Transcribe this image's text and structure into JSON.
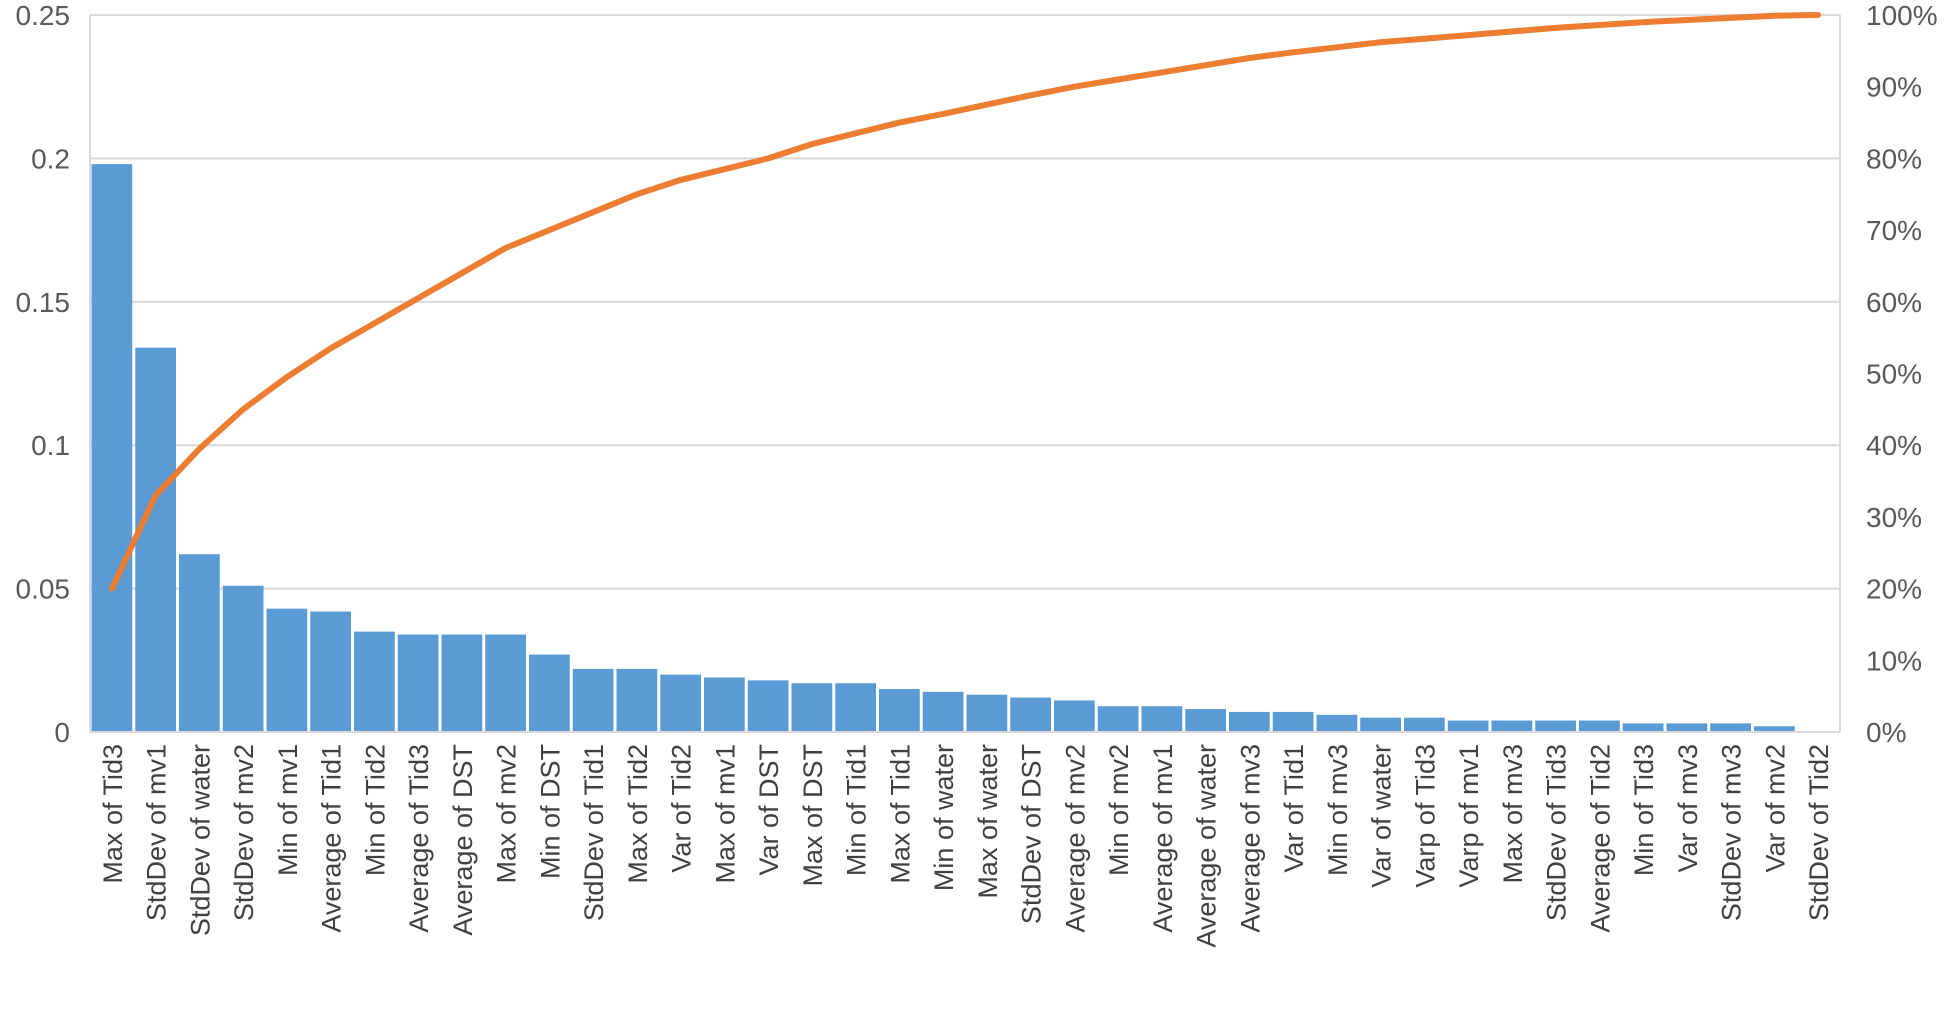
{
  "chart_data": {
    "type": "bar",
    "title": "",
    "xlabel": "",
    "ylabel": "",
    "y2label": "",
    "ylim": [
      0,
      0.25
    ],
    "y2lim": [
      0,
      1
    ],
    "grid": true,
    "legend": "none",
    "y_ticks": [
      "0",
      "0.05",
      "0.1",
      "0.15",
      "0.2",
      "0.25"
    ],
    "y2_ticks": [
      "0%",
      "10%",
      "20%",
      "30%",
      "40%",
      "50%",
      "60%",
      "70%",
      "80%",
      "90%",
      "100%"
    ],
    "categories": [
      "Max of Tid3",
      "StdDev of mv1",
      "StdDev of water",
      "StdDev of mv2",
      "Min of mv1",
      "Average of Tid1",
      "Min of Tid2",
      "Average of Tid3",
      "Average of DST",
      "Max of mv2",
      "Min of DST",
      "StdDev of Tid1",
      "Max of Tid2",
      "Var of Tid2",
      "Max of mv1",
      "Var of DST",
      "Max of DST",
      "Min of Tid1",
      "Max of Tid1",
      "Min of water",
      "Max of water",
      "StdDev of DST",
      "Average of mv2",
      "Min of mv2",
      "Average of mv1",
      "Average of water",
      "Average of mv3",
      "Var of Tid1",
      "Min of mv3",
      "Var of water",
      "Varp of Tid3",
      "Varp of mv1",
      "Max of mv3",
      "StdDev of Tid3",
      "Average of Tid2",
      "Min of Tid3",
      "Var of mv3",
      "StdDev of mv3",
      "Var of mv2",
      "StdDev of Tid2"
    ],
    "series": [
      {
        "type": "bar",
        "axis": "left",
        "values": [
          0.198,
          0.134,
          0.062,
          0.051,
          0.043,
          0.042,
          0.035,
          0.034,
          0.034,
          0.034,
          0.027,
          0.022,
          0.022,
          0.02,
          0.019,
          0.018,
          0.017,
          0.017,
          0.015,
          0.014,
          0.013,
          0.012,
          0.011,
          0.009,
          0.009,
          0.008,
          0.007,
          0.007,
          0.006,
          0.005,
          0.005,
          0.004,
          0.004,
          0.004,
          0.004,
          0.003,
          0.003,
          0.003,
          0.002,
          0.0
        ]
      },
      {
        "type": "line",
        "axis": "right",
        "values": [
          0.2,
          0.33,
          0.395,
          0.45,
          0.495,
          0.535,
          0.57,
          0.605,
          0.64,
          0.675,
          0.7,
          0.725,
          0.75,
          0.77,
          0.785,
          0.8,
          0.82,
          0.835,
          0.85,
          0.862,
          0.875,
          0.888,
          0.9,
          0.91,
          0.92,
          0.93,
          0.94,
          0.948,
          0.955,
          0.962,
          0.967,
          0.972,
          0.977,
          0.982,
          0.986,
          0.99,
          0.993,
          0.996,
          0.999,
          1.0
        ]
      }
    ],
    "colors": {
      "bars": "#5b9bd5",
      "line": "#ed7d31",
      "grid": "#d9d9d9",
      "axis_text": "#595959"
    }
  }
}
